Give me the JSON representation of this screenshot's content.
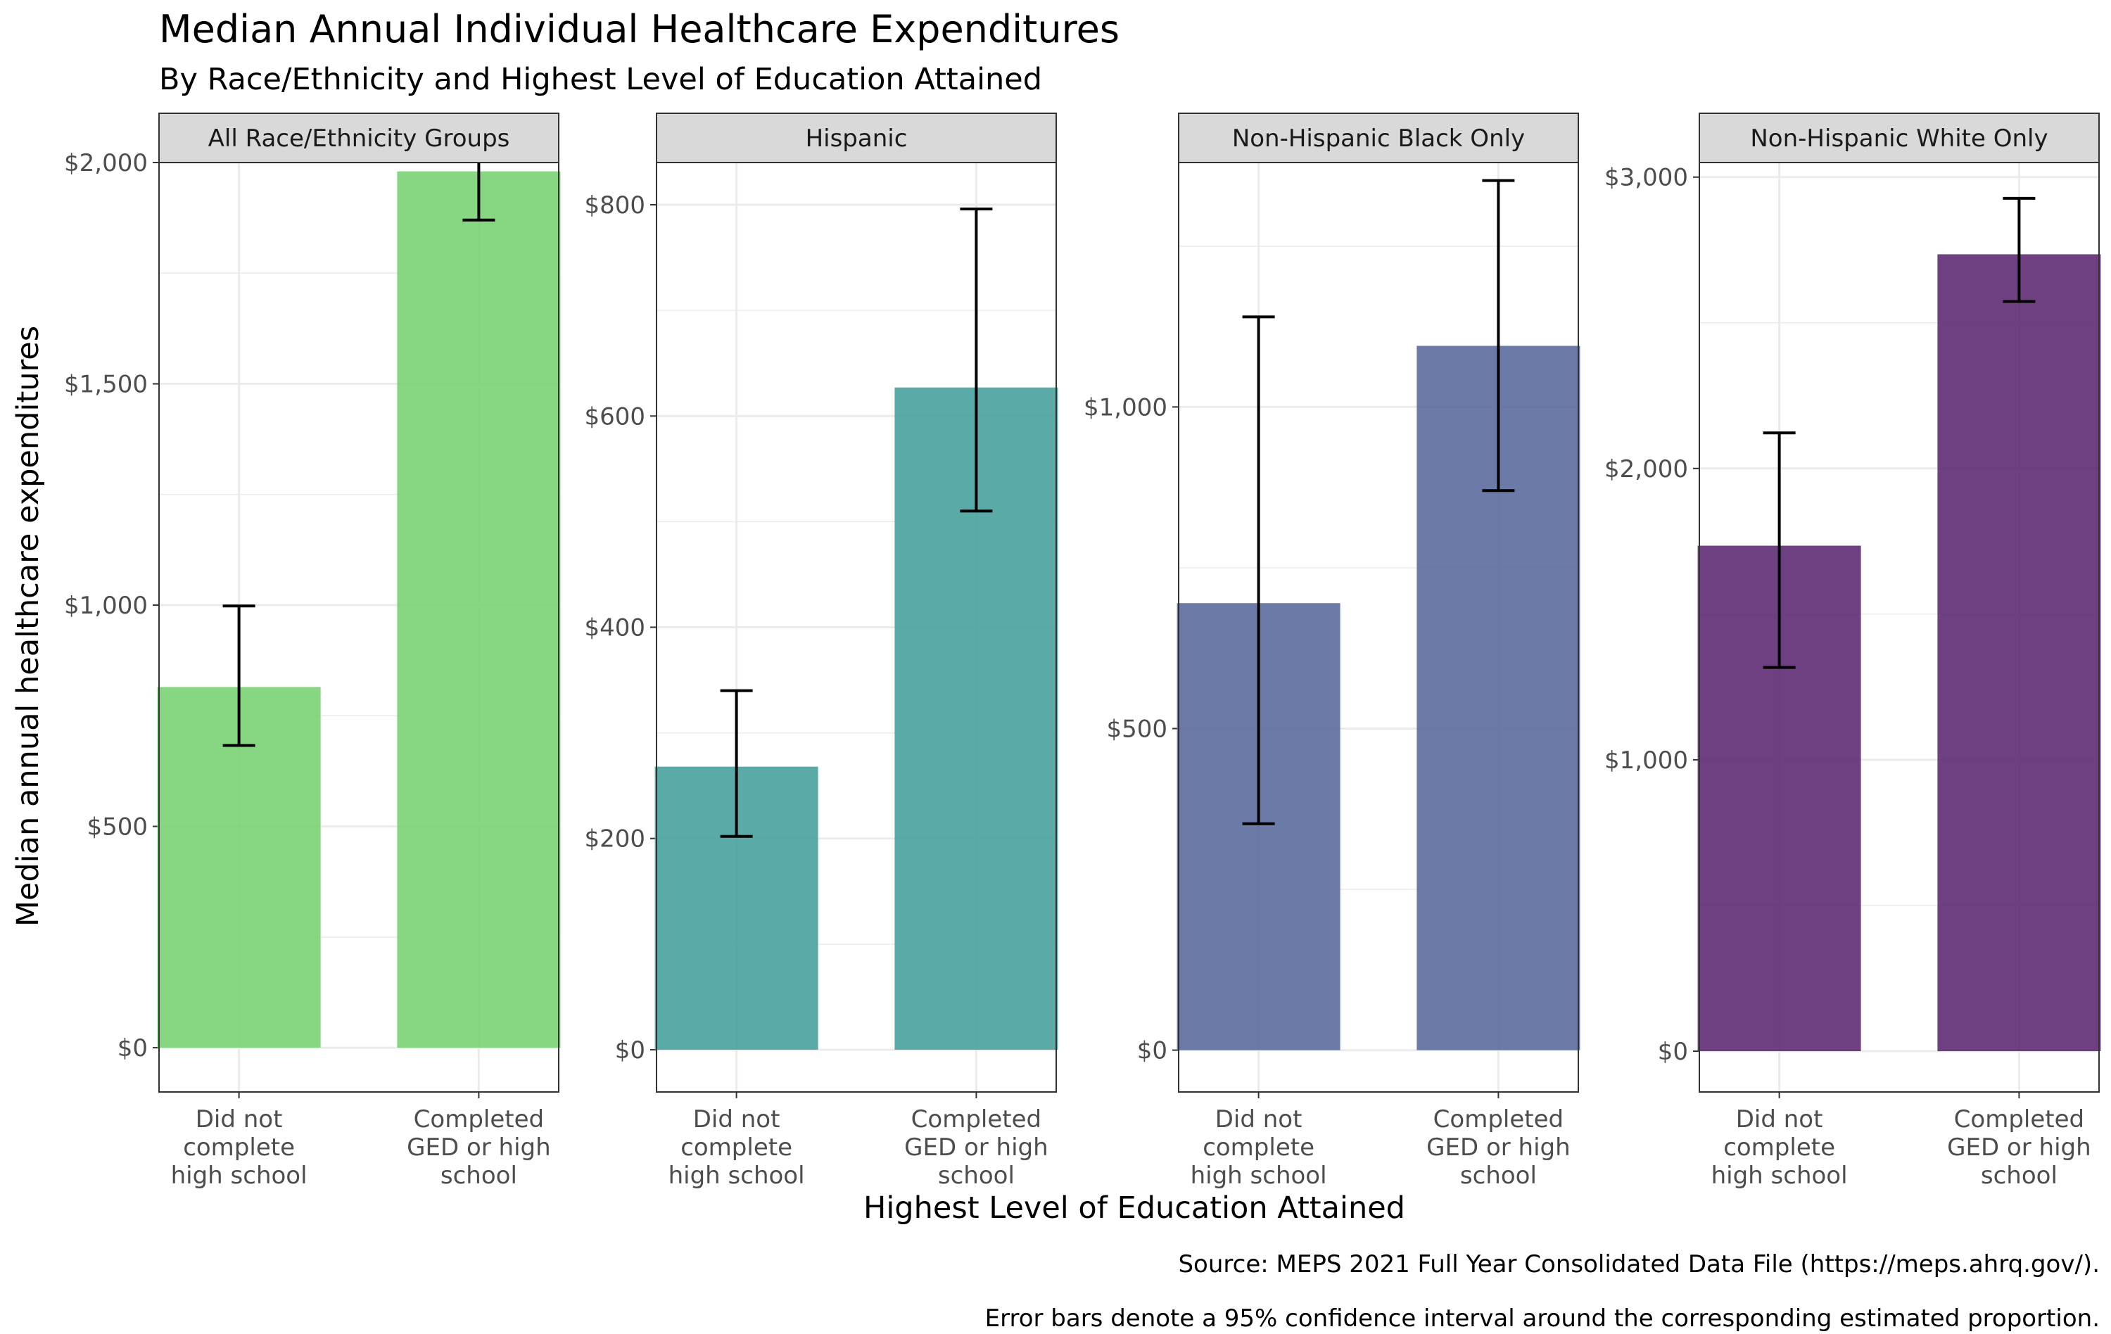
{
  "chart_data": {
    "type": "bar",
    "title": "Median Annual Individual Healthcare Expenditures",
    "subtitle": "By Race/Ethnicity and Highest Level of Education Attained",
    "xlabel": "Highest Level of Education Attained",
    "ylabel": "Median annual healthcare expenditures",
    "caption": [
      "Source: MEPS 2021 Full Year Consolidated Data File (https://meps.ahrq.gov/).",
      "Error bars denote a 95% confidence interval around the corresponding estimated proportion."
    ],
    "categories": [
      [
        "Did not",
        "complete",
        "high school"
      ],
      [
        "Completed",
        "GED or high",
        "school"
      ]
    ],
    "panels": [
      {
        "name": "All Race/Ethnicity Groups",
        "color": "#7AD173",
        "ylim": [
          -100,
          2000
        ],
        "ticks": [
          0,
          500,
          1000,
          1500,
          2000
        ],
        "tick_labels": [
          "$0",
          "$500",
          "$1,000",
          "$1,500",
          "$2,000"
        ],
        "values": [
          815,
          1980
        ],
        "ci_low": [
          683,
          1870
        ],
        "ci_high": [
          998,
          2088
        ]
      },
      {
        "name": "Hispanic",
        "color": "#48A29F",
        "ylim": [
          -40,
          840
        ],
        "ticks": [
          0,
          200,
          400,
          600,
          800
        ],
        "tick_labels": [
          "$0",
          "$200",
          "$400",
          "$600",
          "$800"
        ],
        "values": [
          268,
          627
        ],
        "ci_low": [
          202,
          510
        ],
        "ci_high": [
          340,
          796
        ]
      },
      {
        "name": "Non-Hispanic Black Only",
        "color": "#5B6C9D",
        "ylim": [
          -65,
          1380
        ],
        "ticks": [
          0,
          500,
          1000
        ],
        "tick_labels": [
          "$0",
          "$500",
          "$1,000"
        ],
        "values": [
          695,
          1095
        ],
        "ci_low": [
          352,
          870
        ],
        "ci_high": [
          1140,
          1352
        ]
      },
      {
        "name": "Non-Hispanic White Only",
        "color": "#5E2A73",
        "ylim": [
          -140,
          3050
        ],
        "ticks": [
          0,
          1000,
          2000,
          3000
        ],
        "tick_labels": [
          "$0",
          "$1,000",
          "$2,000",
          "$3,000"
        ],
        "values": [
          1735,
          2735
        ],
        "ci_low": [
          1317,
          2573
        ],
        "ci_high": [
          2122,
          2927
        ]
      }
    ]
  }
}
